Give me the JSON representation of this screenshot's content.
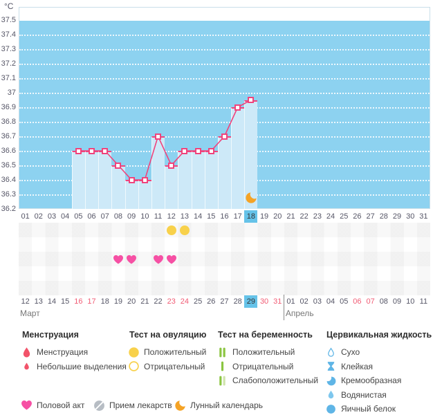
{
  "chart_data": {
    "type": "line",
    "ylabel": "°C",
    "ylim": [
      36.2,
      37.5
    ],
    "ytick_step": 0.1,
    "y_ticks": [
      "37.5",
      "37.4",
      "37.3",
      "37.2",
      "37.1",
      "37",
      "36.9",
      "36.8",
      "36.7",
      "36.6",
      "36.5",
      "36.4",
      "36.3",
      "36.2"
    ],
    "x_cycle_days": [
      "01",
      "02",
      "03",
      "04",
      "05",
      "06",
      "07",
      "08",
      "09",
      "10",
      "11",
      "12",
      "13",
      "14",
      "15",
      "16",
      "17",
      "18",
      "19",
      "20",
      "21",
      "22",
      "23",
      "24",
      "25",
      "26",
      "27",
      "28",
      "29",
      "30",
      "31"
    ],
    "selected_cycle_day": "18",
    "series": [
      {
        "points": [
          {
            "day": 5,
            "temp": 36.6
          },
          {
            "day": 6,
            "temp": 36.6
          },
          {
            "day": 7,
            "temp": 36.6
          },
          {
            "day": 8,
            "temp": 36.5
          },
          {
            "day": 9,
            "temp": 36.4
          },
          {
            "day": 10,
            "temp": 36.4
          },
          {
            "day": 11,
            "temp": 36.7
          },
          {
            "day": 12,
            "temp": 36.5
          },
          {
            "day": 13,
            "temp": 36.6
          },
          {
            "day": 14,
            "temp": 36.6
          },
          {
            "day": 15,
            "temp": 36.6
          },
          {
            "day": 16,
            "temp": 36.7
          },
          {
            "day": 17,
            "temp": 36.9
          },
          {
            "day": 18,
            "temp": 36.95
          }
        ]
      }
    ],
    "events": {
      "lunar_calendar_days": [
        18
      ],
      "ovulation_test_positive_days": [
        12,
        13
      ],
      "intercourse_days": [
        8,
        9,
        11,
        12
      ]
    }
  },
  "calendar": {
    "months": [
      {
        "label": "Март",
        "days": [
          "12",
          "13",
          "14",
          "15",
          "16",
          "17",
          "18",
          "19",
          "20",
          "21",
          "22",
          "23",
          "24",
          "25",
          "26",
          "27",
          "28",
          "29",
          "30",
          "31"
        ],
        "weekend_days": [
          "16",
          "17",
          "23",
          "24",
          "30",
          "31"
        ],
        "selected_day": "29"
      },
      {
        "label": "Апрель",
        "days": [
          "01",
          "02",
          "03",
          "04",
          "05",
          "06",
          "07",
          "08",
          "09",
          "10",
          "11"
        ],
        "weekend_days": [
          "06",
          "07"
        ],
        "selected_day": ""
      }
    ]
  },
  "legend": {
    "sections": [
      {
        "title": "Менструация",
        "items": [
          {
            "icon": "menstruation-drop-icon",
            "label": "Менструация"
          },
          {
            "icon": "spotting-drop-icon",
            "label": "Небольшие выделения"
          }
        ]
      },
      {
        "title": "Тест на овуляцию",
        "items": [
          {
            "icon": "yellow-circle-filled-icon",
            "label": "Положительный"
          },
          {
            "icon": "yellow-circle-outline-icon",
            "label": "Отрицательный"
          }
        ]
      },
      {
        "title": "Тест на беременность",
        "items": [
          {
            "icon": "two-green-bars-icon",
            "label": "Положительный"
          },
          {
            "icon": "one-green-bar-icon",
            "label": "Отрицательный"
          },
          {
            "icon": "green-pale-bars-icon",
            "label": "Слабоположительный"
          }
        ]
      },
      {
        "title": "Цервикальная жидкость",
        "items": [
          {
            "icon": "droplet-outline-icon",
            "label": "Сухо"
          },
          {
            "icon": "sticky-icon",
            "label": "Клейкая"
          },
          {
            "icon": "creamy-icon",
            "label": "Кремообразная"
          },
          {
            "icon": "watery-drop-icon",
            "label": "Водянистая"
          },
          {
            "icon": "egg-white-circle-icon",
            "label": "Яичный белок"
          }
        ]
      }
    ],
    "footer_items": [
      {
        "icon": "heart-icon",
        "label": "Половой акт"
      },
      {
        "icon": "medication-icon",
        "label": "Прием лекарств"
      },
      {
        "icon": "moon-icon",
        "label": "Лунный календарь"
      }
    ]
  },
  "colors": {
    "plot_background": "#8dd2f0",
    "bar_fill": "#cde9f8",
    "line_pink": "#f0437c",
    "selected_day_highlight": "#66c3e9",
    "weekend_red": "#f15b74",
    "ovulation_yellow": "#f8d14b",
    "heart_pink": "#f650a4",
    "menstruation_red": "#f2536a",
    "pregnancy_green": "#8bc541",
    "pregnancy_pale_green": "#cfe4ab",
    "fluid_blue": "#5fb5e6",
    "moon_orange": "#f5a325",
    "medication_gray": "#b7bdc4"
  }
}
